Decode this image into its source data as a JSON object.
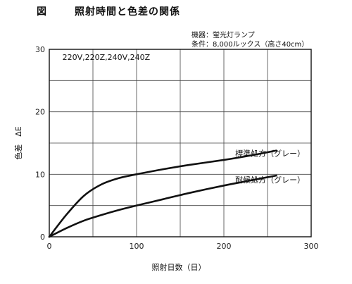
{
  "figure": {
    "label": "図",
    "title": "照射時間と色差の関係"
  },
  "conditions": [
    "機器：蛍光灯ランプ",
    "条件：8,000ルックス（高さ40cm）"
  ],
  "chart_data": {
    "type": "line",
    "xlabel": "照射日数（日）",
    "ylabel": "色差　ΔE",
    "xlim": [
      0,
      300
    ],
    "ylim": [
      0,
      30
    ],
    "xticks": [
      0,
      100,
      200,
      300
    ],
    "yticks": [
      0,
      10,
      20,
      30
    ],
    "grid": true,
    "annotation": "220V,220Z,240V,240Z",
    "series": [
      {
        "name": "標準処方（グレー）",
        "x": [
          0,
          20,
          40,
          60,
          80,
          100,
          130,
          160,
          200,
          230,
          260
        ],
        "y": [
          0,
          3.6,
          6.6,
          8.4,
          9.4,
          10.0,
          10.8,
          11.5,
          12.3,
          13.0,
          13.8
        ]
      },
      {
        "name": "耐候処方（グレー）",
        "x": [
          0,
          20,
          40,
          60,
          80,
          100,
          130,
          160,
          200,
          230,
          260
        ],
        "y": [
          0,
          1.4,
          2.6,
          3.5,
          4.3,
          5.0,
          6.0,
          7.0,
          8.2,
          9.0,
          9.8
        ]
      }
    ]
  }
}
